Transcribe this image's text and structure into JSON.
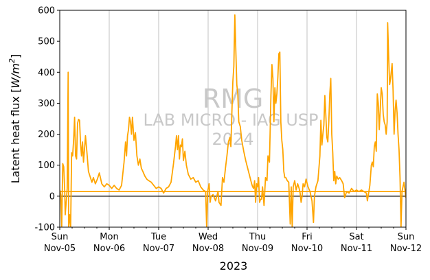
{
  "chart_data": {
    "type": "line",
    "xlabel": "2023",
    "ylabel_main": "Latent heat flux [",
    "ylabel_unit_base": "W/m",
    "ylabel_unit_exp": "2",
    "ylabel_close": "]",
    "ylim": [
      -100,
      600
    ],
    "xlim_days": [
      0,
      7
    ],
    "yticks": [
      -100,
      0,
      100,
      200,
      300,
      400,
      500,
      600
    ],
    "xticks": [
      {
        "day": 0,
        "dow": "Sun",
        "date": "Nov-05"
      },
      {
        "day": 1,
        "dow": "Mon",
        "date": "Nov-06"
      },
      {
        "day": 2,
        "dow": "Tue",
        "date": "Nov-07"
      },
      {
        "day": 3,
        "dow": "Wed",
        "date": "Nov-08"
      },
      {
        "day": 4,
        "dow": "Thu",
        "date": "Nov-09"
      },
      {
        "day": 5,
        "dow": "Fri",
        "date": "Nov-10"
      },
      {
        "day": 6,
        "dow": "Sat",
        "date": "Nov-11"
      },
      {
        "day": 7,
        "dow": "Sun",
        "date": "Nov-12"
      }
    ],
    "grid": "vertical",
    "watermark": {
      "line1": "RMG",
      "line2": "LAB MICRO - IAG USP",
      "line3": "2024"
    },
    "series": [
      {
        "color": "#ffa500",
        "points": [
          [
            0.0,
            20
          ],
          [
            0.02,
            5
          ],
          [
            0.04,
            -100
          ],
          [
            0.06,
            105
          ],
          [
            0.08,
            95
          ],
          [
            0.1,
            20
          ],
          [
            0.11,
            -60
          ],
          [
            0.13,
            -20
          ],
          [
            0.15,
            25
          ],
          [
            0.17,
            400
          ],
          [
            0.18,
            -100
          ],
          [
            0.2,
            -60
          ],
          [
            0.22,
            -100
          ],
          [
            0.24,
            140
          ],
          [
            0.26,
            130
          ],
          [
            0.28,
            180
          ],
          [
            0.3,
            255
          ],
          [
            0.32,
            130
          ],
          [
            0.34,
            120
          ],
          [
            0.36,
            235
          ],
          [
            0.38,
            248
          ],
          [
            0.4,
            245
          ],
          [
            0.42,
            170
          ],
          [
            0.44,
            130
          ],
          [
            0.46,
            175
          ],
          [
            0.48,
            110
          ],
          [
            0.5,
            150
          ],
          [
            0.52,
            195
          ],
          [
            0.55,
            140
          ],
          [
            0.58,
            80
          ],
          [
            0.62,
            60
          ],
          [
            0.65,
            45
          ],
          [
            0.68,
            60
          ],
          [
            0.72,
            40
          ],
          [
            0.76,
            55
          ],
          [
            0.8,
            75
          ],
          [
            0.85,
            40
          ],
          [
            0.9,
            30
          ],
          [
            0.95,
            40
          ],
          [
            1.0,
            35
          ],
          [
            1.05,
            25
          ],
          [
            1.1,
            35
          ],
          [
            1.15,
            25
          ],
          [
            1.2,
            20
          ],
          [
            1.25,
            35
          ],
          [
            1.3,
            110
          ],
          [
            1.33,
            175
          ],
          [
            1.35,
            130
          ],
          [
            1.37,
            195
          ],
          [
            1.39,
            215
          ],
          [
            1.41,
            255
          ],
          [
            1.43,
            240
          ],
          [
            1.45,
            200
          ],
          [
            1.47,
            255
          ],
          [
            1.5,
            180
          ],
          [
            1.53,
            205
          ],
          [
            1.56,
            130
          ],
          [
            1.59,
            100
          ],
          [
            1.62,
            120
          ],
          [
            1.65,
            90
          ],
          [
            1.68,
            80
          ],
          [
            1.72,
            65
          ],
          [
            1.76,
            55
          ],
          [
            1.8,
            50
          ],
          [
            1.85,
            45
          ],
          [
            1.9,
            35
          ],
          [
            1.95,
            25
          ],
          [
            2.0,
            30
          ],
          [
            2.05,
            25
          ],
          [
            2.1,
            10
          ],
          [
            2.15,
            25
          ],
          [
            2.2,
            30
          ],
          [
            2.25,
            45
          ],
          [
            2.3,
            105
          ],
          [
            2.34,
            160
          ],
          [
            2.36,
            195
          ],
          [
            2.38,
            150
          ],
          [
            2.4,
            195
          ],
          [
            2.42,
            120
          ],
          [
            2.44,
            165
          ],
          [
            2.46,
            160
          ],
          [
            2.48,
            185
          ],
          [
            2.5,
            115
          ],
          [
            2.53,
            145
          ],
          [
            2.56,
            100
          ],
          [
            2.6,
            70
          ],
          [
            2.65,
            55
          ],
          [
            2.7,
            60
          ],
          [
            2.75,
            45
          ],
          [
            2.8,
            50
          ],
          [
            2.85,
            30
          ],
          [
            2.9,
            20
          ],
          [
            2.95,
            15
          ],
          [
            2.97,
            -100
          ],
          [
            2.99,
            15
          ],
          [
            3.02,
            40
          ],
          [
            3.04,
            -20
          ],
          [
            3.06,
            0
          ],
          [
            3.1,
            5
          ],
          [
            3.15,
            -15
          ],
          [
            3.2,
            15
          ],
          [
            3.22,
            -20
          ],
          [
            3.26,
            -30
          ],
          [
            3.29,
            60
          ],
          [
            3.32,
            45
          ],
          [
            3.35,
            90
          ],
          [
            3.38,
            130
          ],
          [
            3.41,
            175
          ],
          [
            3.44,
            190
          ],
          [
            3.46,
            160
          ],
          [
            3.48,
            270
          ],
          [
            3.5,
            370
          ],
          [
            3.52,
            420
          ],
          [
            3.54,
            585
          ],
          [
            3.56,
            470
          ],
          [
            3.58,
            360
          ],
          [
            3.6,
            330
          ],
          [
            3.62,
            240
          ],
          [
            3.65,
            225
          ],
          [
            3.68,
            180
          ],
          [
            3.72,
            145
          ],
          [
            3.76,
            115
          ],
          [
            3.8,
            90
          ],
          [
            3.84,
            65
          ],
          [
            3.88,
            40
          ],
          [
            3.9,
            30
          ],
          [
            3.92,
            25
          ],
          [
            3.94,
            50
          ],
          [
            3.96,
            -20
          ],
          [
            3.98,
            40
          ],
          [
            4.0,
            30
          ],
          [
            4.02,
            60
          ],
          [
            4.04,
            -20
          ],
          [
            4.06,
            -10
          ],
          [
            4.08,
            -10
          ],
          [
            4.1,
            30
          ],
          [
            4.13,
            -30
          ],
          [
            4.16,
            60
          ],
          [
            4.19,
            50
          ],
          [
            4.21,
            130
          ],
          [
            4.24,
            110
          ],
          [
            4.27,
            325
          ],
          [
            4.29,
            425
          ],
          [
            4.31,
            380
          ],
          [
            4.33,
            240
          ],
          [
            4.35,
            350
          ],
          [
            4.37,
            300
          ],
          [
            4.39,
            330
          ],
          [
            4.41,
            385
          ],
          [
            4.43,
            460
          ],
          [
            4.45,
            465
          ],
          [
            4.47,
            240
          ],
          [
            4.49,
            180
          ],
          [
            4.51,
            150
          ],
          [
            4.53,
            80
          ],
          [
            4.55,
            60
          ],
          [
            4.57,
            60
          ],
          [
            4.6,
            50
          ],
          [
            4.63,
            45
          ],
          [
            4.66,
            -90
          ],
          [
            4.68,
            30
          ],
          [
            4.7,
            -100
          ],
          [
            4.72,
            30
          ],
          [
            4.75,
            50
          ],
          [
            4.78,
            20
          ],
          [
            4.81,
            40
          ],
          [
            4.84,
            25
          ],
          [
            4.86,
            10
          ],
          [
            4.88,
            -20
          ],
          [
            4.9,
            0
          ],
          [
            4.92,
            40
          ],
          [
            4.95,
            30
          ],
          [
            4.98,
            55
          ],
          [
            5.02,
            30
          ],
          [
            5.06,
            15
          ],
          [
            5.1,
            -15
          ],
          [
            5.13,
            -85
          ],
          [
            5.15,
            0
          ],
          [
            5.18,
            30
          ],
          [
            5.22,
            50
          ],
          [
            5.26,
            130
          ],
          [
            5.28,
            245
          ],
          [
            5.3,
            165
          ],
          [
            5.32,
            200
          ],
          [
            5.34,
            230
          ],
          [
            5.36,
            325
          ],
          [
            5.38,
            260
          ],
          [
            5.4,
            190
          ],
          [
            5.42,
            175
          ],
          [
            5.44,
            240
          ],
          [
            5.46,
            330
          ],
          [
            5.48,
            380
          ],
          [
            5.5,
            200
          ],
          [
            5.52,
            140
          ],
          [
            5.54,
            50
          ],
          [
            5.56,
            80
          ],
          [
            5.58,
            40
          ],
          [
            5.6,
            65
          ],
          [
            5.63,
            55
          ],
          [
            5.66,
            60
          ],
          [
            5.7,
            50
          ],
          [
            5.73,
            40
          ],
          [
            5.76,
            -5
          ],
          [
            5.8,
            15
          ],
          [
            5.85,
            10
          ],
          [
            5.9,
            25
          ],
          [
            5.95,
            15
          ],
          [
            6.0,
            20
          ],
          [
            6.05,
            15
          ],
          [
            6.1,
            20
          ],
          [
            6.15,
            15
          ],
          [
            6.2,
            10
          ],
          [
            6.22,
            -15
          ],
          [
            6.25,
            15
          ],
          [
            6.27,
            35
          ],
          [
            6.3,
            100
          ],
          [
            6.32,
            110
          ],
          [
            6.34,
            95
          ],
          [
            6.36,
            160
          ],
          [
            6.38,
            175
          ],
          [
            6.4,
            145
          ],
          [
            6.42,
            330
          ],
          [
            6.44,
            300
          ],
          [
            6.46,
            215
          ],
          [
            6.48,
            280
          ],
          [
            6.5,
            350
          ],
          [
            6.52,
            330
          ],
          [
            6.54,
            265
          ],
          [
            6.56,
            240
          ],
          [
            6.58,
            230
          ],
          [
            6.6,
            200
          ],
          [
            6.62,
            240
          ],
          [
            6.63,
            560
          ],
          [
            6.65,
            450
          ],
          [
            6.67,
            360
          ],
          [
            6.69,
            380
          ],
          [
            6.72,
            428
          ],
          [
            6.74,
            340
          ],
          [
            6.76,
            200
          ],
          [
            6.78,
            275
          ],
          [
            6.8,
            310
          ],
          [
            6.82,
            270
          ],
          [
            6.84,
            200
          ],
          [
            6.86,
            150
          ],
          [
            6.88,
            60
          ],
          [
            6.9,
            -100
          ],
          [
            6.92,
            15
          ],
          [
            6.94,
            30
          ],
          [
            6.96,
            45
          ],
          [
            6.98,
            20
          ],
          [
            7.0,
            -5
          ]
        ]
      },
      {
        "color": "#ffa500",
        "points": [
          [
            0,
            15
          ],
          [
            7,
            15
          ]
        ]
      }
    ]
  }
}
